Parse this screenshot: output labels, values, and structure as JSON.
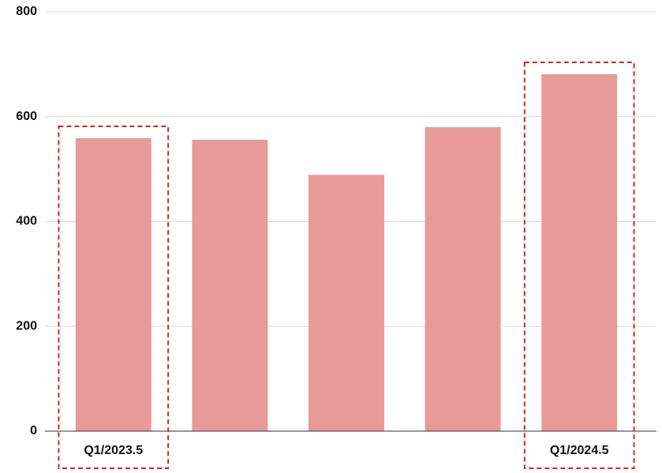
{
  "chart_data": {
    "type": "bar",
    "categories": [
      "Q1/2023.5",
      null,
      null,
      null,
      "Q1/2024.5"
    ],
    "values": [
      559,
      556,
      489,
      580,
      681
    ],
    "color": "#e89a99",
    "ylim": [
      0,
      800
    ],
    "yticks": [
      0,
      200,
      400,
      600,
      800
    ],
    "grid": true
  }
}
